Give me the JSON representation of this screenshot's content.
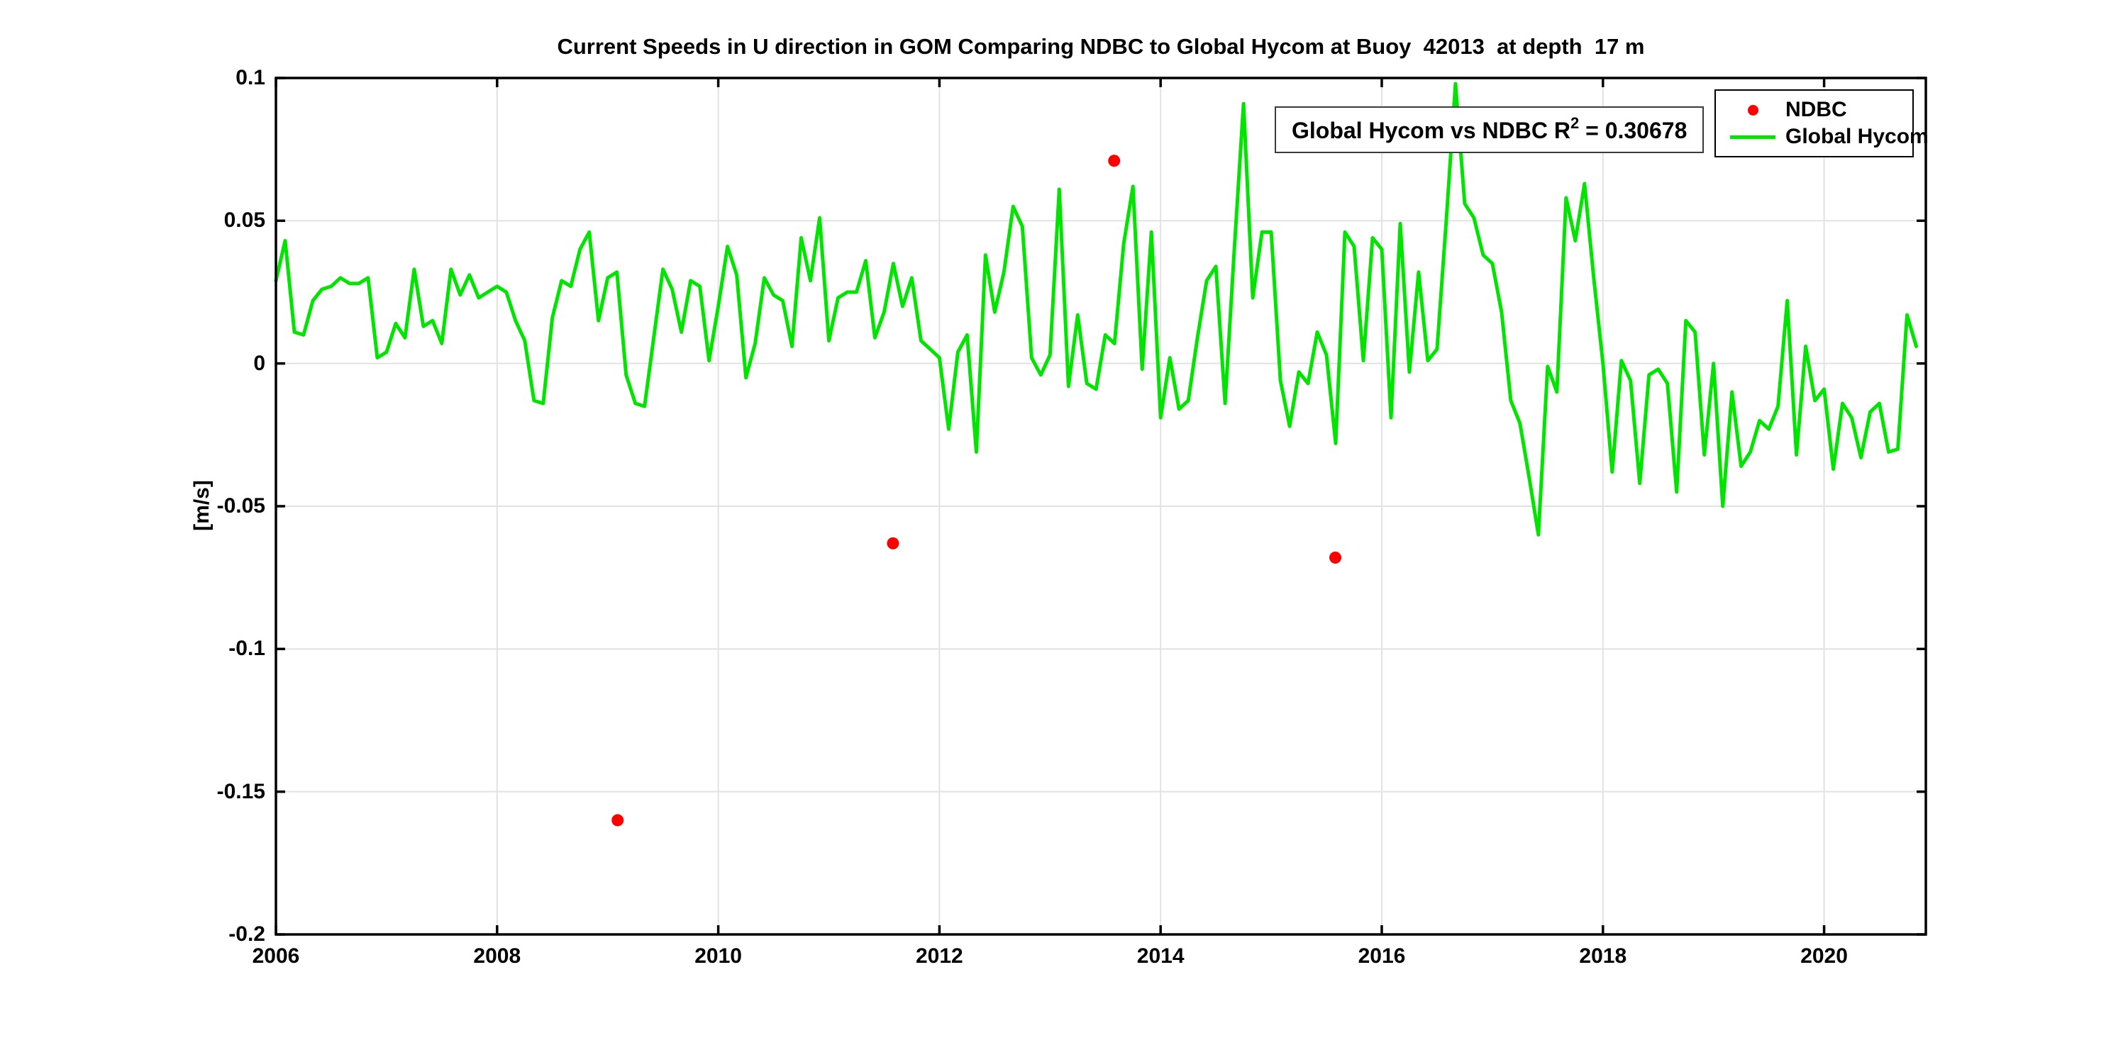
{
  "chart_data": {
    "type": "line",
    "title": "Current Speeds in U direction in GOM Comparing NDBC to Global Hycom at Buoy  42013  at depth  17 m",
    "xlabel": "",
    "ylabel": "[m/s]",
    "xlim": [
      2006,
      2020.92
    ],
    "ylim": [
      -0.2,
      0.1
    ],
    "grid": true,
    "legend_position": "top-right",
    "xticks": {
      "values": [
        2006,
        2008,
        2010,
        2012,
        2014,
        2016,
        2018,
        2020
      ],
      "labels": [
        "2006",
        "2008",
        "2010",
        "2012",
        "2014",
        "2016",
        "2018",
        "2020"
      ]
    },
    "yticks": {
      "values": [
        0.1,
        0.05,
        0,
        -0.05,
        -0.1,
        -0.15,
        -0.2
      ],
      "labels": [
        "0.1",
        "0.05",
        "0",
        "-0.05",
        "-0.1",
        "-0.15",
        "-0.2"
      ]
    },
    "series": [
      {
        "name": "Global Hycom",
        "type": "line",
        "color": "#00e400",
        "x_start_year": 2006,
        "x_step_years": 0.083333,
        "values": [
          0.029,
          0.043,
          0.011,
          0.01,
          0.022,
          0.026,
          0.027,
          0.03,
          0.028,
          0.028,
          0.03,
          0.002,
          0.004,
          0.014,
          0.009,
          0.033,
          0.013,
          0.015,
          0.007,
          0.033,
          0.024,
          0.031,
          0.023,
          0.025,
          0.027,
          0.025,
          0.015,
          0.008,
          -0.013,
          -0.014,
          0.016,
          0.029,
          0.027,
          0.04,
          0.046,
          0.015,
          0.03,
          0.032,
          -0.004,
          -0.014,
          -0.015,
          0.009,
          0.033,
          0.026,
          0.011,
          0.029,
          0.027,
          0.001,
          0.02,
          0.041,
          0.031,
          -0.005,
          0.007,
          0.03,
          0.024,
          0.022,
          0.006,
          0.044,
          0.029,
          0.051,
          0.008,
          0.023,
          0.025,
          0.025,
          0.036,
          0.009,
          0.018,
          0.035,
          0.02,
          0.03,
          0.008,
          0.005,
          0.002,
          -0.023,
          0.004,
          0.01,
          -0.031,
          0.038,
          0.018,
          0.032,
          0.055,
          0.048,
          0.002,
          -0.004,
          0.003,
          0.061,
          -0.008,
          0.017,
          -0.007,
          -0.009,
          0.01,
          0.007,
          0.042,
          0.062,
          -0.002,
          0.046,
          -0.019,
          0.002,
          -0.016,
          -0.013,
          0.009,
          0.029,
          0.034,
          -0.014,
          0.04,
          0.091,
          0.023,
          0.046,
          0.046,
          -0.006,
          -0.022,
          -0.003,
          -0.007,
          0.011,
          0.003,
          -0.028,
          0.046,
          0.041,
          0.001,
          0.044,
          0.04,
          -0.019,
          0.049,
          -0.003,
          0.032,
          0.001,
          0.005,
          0.05,
          0.098,
          0.056,
          0.051,
          0.038,
          0.035,
          0.018,
          -0.013,
          -0.021,
          -0.04,
          -0.06,
          -0.001,
          -0.01,
          0.058,
          0.043,
          0.063,
          0.03,
          0.0,
          -0.038,
          0.001,
          -0.006,
          -0.042,
          -0.004,
          -0.002,
          -0.007,
          -0.045,
          0.015,
          0.011,
          -0.032,
          0.0,
          -0.05,
          -0.01,
          -0.036,
          -0.031,
          -0.02,
          -0.023,
          -0.015,
          0.022,
          -0.032,
          0.006,
          -0.013,
          -0.009,
          -0.037,
          -0.014,
          -0.019,
          -0.033,
          -0.017,
          -0.014,
          -0.031,
          -0.03,
          0.017,
          0.006
        ]
      },
      {
        "name": "NDBC",
        "type": "scatter",
        "color": "#ff0000",
        "points": [
          {
            "x": 2009.09,
            "y": -0.16
          },
          {
            "x": 2011.58,
            "y": -0.063
          },
          {
            "x": 2013.58,
            "y": 0.071
          },
          {
            "x": 2015.58,
            "y": -0.068
          }
        ]
      }
    ],
    "colors": {
      "grid": "#e2e2e2",
      "axis": "#000000",
      "background": "#ffffff"
    }
  },
  "annotation": {
    "prefix": "Global Hycom vs NDBC R",
    "superscript": "2",
    "suffix": " = 0.30678"
  },
  "legend": {
    "items": [
      {
        "label": "NDBC",
        "marker": "dot",
        "color": "#ff0000"
      },
      {
        "label": "Global Hycom",
        "marker": "line",
        "color": "#00e400"
      }
    ]
  }
}
